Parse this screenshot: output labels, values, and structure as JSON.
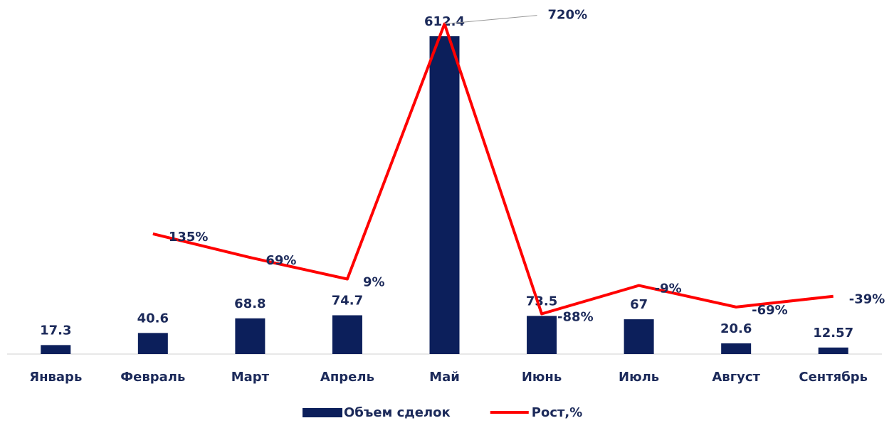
{
  "chart_data": {
    "type": "bar+line",
    "categories": [
      "Январь",
      "Февраль",
      "Март",
      "Апрель",
      "Май",
      "Июнь",
      "Июль",
      "Август",
      "Сентябрь"
    ],
    "series": [
      {
        "name": "Объем сделок",
        "type": "bar",
        "color": "#0c1f5b",
        "values": [
          17.3,
          40.6,
          68.8,
          74.7,
          612.4,
          73.5,
          67,
          20.6,
          12.57
        ]
      },
      {
        "name": "Рост,%",
        "type": "line",
        "axis": "y2",
        "color": "#ff0000",
        "values": [
          null,
          135,
          69,
          9,
          720,
          -88,
          -9,
          -69,
          -39
        ],
        "value_labels": [
          null,
          "135%",
          "69%",
          "9%",
          "720%",
          "-88%",
          "-9%",
          "-69%",
          "-39%"
        ]
      }
    ],
    "ylim": [
      0,
      650
    ],
    "y2lim": [
      -200,
      740
    ],
    "legend": "bottom"
  }
}
